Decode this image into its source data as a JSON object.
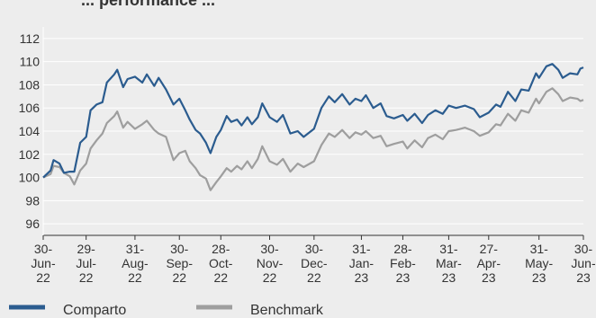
{
  "chart_data": {
    "type": "line",
    "title": "... performance ...",
    "ylim": [
      95,
      113
    ],
    "yticks": [
      96,
      98,
      100,
      102,
      104,
      106,
      108,
      110,
      112
    ],
    "x_ticks": [
      {
        "date": "2022-06-30",
        "lines": [
          "30-",
          "Jun-",
          "22"
        ]
      },
      {
        "date": "2022-07-29",
        "lines": [
          "29-",
          "Jul-",
          "22"
        ]
      },
      {
        "date": "2022-08-31",
        "lines": [
          "31-",
          "Aug-",
          "22"
        ]
      },
      {
        "date": "2022-09-30",
        "lines": [
          "30-",
          "Sep-",
          "22"
        ]
      },
      {
        "date": "2022-10-28",
        "lines": [
          "28-",
          "Oct-",
          "22"
        ]
      },
      {
        "date": "2022-11-30",
        "lines": [
          "30-",
          "Nov-",
          "22"
        ]
      },
      {
        "date": "2022-12-30",
        "lines": [
          "30-",
          "Dec-",
          "22"
        ]
      },
      {
        "date": "2023-01-31",
        "lines": [
          "31-",
          "Jan-",
          "23"
        ]
      },
      {
        "date": "2023-02-28",
        "lines": [
          "28-",
          "Feb-",
          "23"
        ]
      },
      {
        "date": "2023-03-31",
        "lines": [
          "31-",
          "Mar-",
          "23"
        ]
      },
      {
        "date": "2023-04-27",
        "lines": [
          "27-",
          "Apr-",
          "23"
        ]
      },
      {
        "date": "2023-05-31",
        "lines": [
          "31-",
          "May-",
          "23"
        ]
      },
      {
        "date": "2023-06-30",
        "lines": [
          "30-",
          "Jun-",
          "23"
        ]
      }
    ],
    "grid": true,
    "legend_position": "bottom-left",
    "series": [
      {
        "name": "Comparto",
        "color": "#2b5c8f",
        "points": [
          [
            "2022-06-30",
            100.0
          ],
          [
            "2022-07-05",
            100.6
          ],
          [
            "2022-07-07",
            101.5
          ],
          [
            "2022-07-11",
            101.2
          ],
          [
            "2022-07-14",
            100.4
          ],
          [
            "2022-07-18",
            100.5
          ],
          [
            "2022-07-21",
            100.5
          ],
          [
            "2022-07-25",
            103.0
          ],
          [
            "2022-07-29",
            103.5
          ],
          [
            "2022-08-01",
            105.8
          ],
          [
            "2022-08-05",
            106.3
          ],
          [
            "2022-08-09",
            106.5
          ],
          [
            "2022-08-12",
            108.2
          ],
          [
            "2022-08-17",
            108.9
          ],
          [
            "2022-08-19",
            109.3
          ],
          [
            "2022-08-23",
            107.8
          ],
          [
            "2022-08-26",
            108.5
          ],
          [
            "2022-08-31",
            108.7
          ],
          [
            "2022-09-05",
            108.2
          ],
          [
            "2022-09-08",
            108.9
          ],
          [
            "2022-09-13",
            107.9
          ],
          [
            "2022-09-16",
            108.6
          ],
          [
            "2022-09-21",
            107.6
          ],
          [
            "2022-09-26",
            106.3
          ],
          [
            "2022-09-30",
            106.8
          ],
          [
            "2022-10-04",
            105.8
          ],
          [
            "2022-10-07",
            105.0
          ],
          [
            "2022-10-11",
            104.1
          ],
          [
            "2022-10-14",
            103.8
          ],
          [
            "2022-10-18",
            103.0
          ],
          [
            "2022-10-21",
            102.1
          ],
          [
            "2022-10-25",
            103.5
          ],
          [
            "2022-10-28",
            104.1
          ],
          [
            "2022-11-01",
            105.3
          ],
          [
            "2022-11-04",
            104.8
          ],
          [
            "2022-11-08",
            105.0
          ],
          [
            "2022-11-11",
            104.5
          ],
          [
            "2022-11-15",
            105.2
          ],
          [
            "2022-11-18",
            104.6
          ],
          [
            "2022-11-22",
            105.2
          ],
          [
            "2022-11-25",
            106.4
          ],
          [
            "2022-11-30",
            105.2
          ],
          [
            "2022-12-05",
            104.8
          ],
          [
            "2022-12-09",
            105.4
          ],
          [
            "2022-12-14",
            103.8
          ],
          [
            "2022-12-19",
            104.0
          ],
          [
            "2022-12-23",
            103.5
          ],
          [
            "2022-12-30",
            104.2
          ],
          [
            "2023-01-04",
            106.0
          ],
          [
            "2023-01-09",
            107.0
          ],
          [
            "2023-01-13",
            106.5
          ],
          [
            "2023-01-18",
            107.2
          ],
          [
            "2023-01-23",
            106.3
          ],
          [
            "2023-01-27",
            106.8
          ],
          [
            "2023-01-31",
            106.6
          ],
          [
            "2023-02-03",
            107.1
          ],
          [
            "2023-02-08",
            106.0
          ],
          [
            "2023-02-13",
            106.4
          ],
          [
            "2023-02-17",
            105.3
          ],
          [
            "2023-02-22",
            105.1
          ],
          [
            "2023-02-28",
            105.4
          ],
          [
            "2023-03-03",
            104.9
          ],
          [
            "2023-03-08",
            105.5
          ],
          [
            "2023-03-13",
            104.7
          ],
          [
            "2023-03-17",
            105.4
          ],
          [
            "2023-03-22",
            105.8
          ],
          [
            "2023-03-27",
            105.5
          ],
          [
            "2023-03-31",
            106.2
          ],
          [
            "2023-04-05",
            106.0
          ],
          [
            "2023-04-11",
            106.2
          ],
          [
            "2023-04-17",
            105.9
          ],
          [
            "2023-04-21",
            105.2
          ],
          [
            "2023-04-27",
            105.6
          ],
          [
            "2023-05-02",
            106.3
          ],
          [
            "2023-05-05",
            106.1
          ],
          [
            "2023-05-10",
            107.4
          ],
          [
            "2023-05-15",
            106.6
          ],
          [
            "2023-05-19",
            107.6
          ],
          [
            "2023-05-24",
            107.5
          ],
          [
            "2023-05-29",
            109.0
          ],
          [
            "2023-05-31",
            108.6
          ],
          [
            "2023-06-05",
            109.6
          ],
          [
            "2023-06-09",
            109.8
          ],
          [
            "2023-06-13",
            109.3
          ],
          [
            "2023-06-16",
            108.6
          ],
          [
            "2023-06-21",
            109.0
          ],
          [
            "2023-06-26",
            108.9
          ],
          [
            "2023-06-28",
            109.4
          ],
          [
            "2023-06-30",
            109.5
          ]
        ]
      },
      {
        "name": "Benchmark",
        "color": "#9e9e9e",
        "points": [
          [
            "2022-06-30",
            100.0
          ],
          [
            "2022-07-05",
            100.3
          ],
          [
            "2022-07-07",
            101.0
          ],
          [
            "2022-07-11",
            100.9
          ],
          [
            "2022-07-14",
            100.4
          ],
          [
            "2022-07-18",
            100.1
          ],
          [
            "2022-07-21",
            99.4
          ],
          [
            "2022-07-25",
            100.6
          ],
          [
            "2022-07-29",
            101.2
          ],
          [
            "2022-08-01",
            102.5
          ],
          [
            "2022-08-05",
            103.2
          ],
          [
            "2022-08-09",
            103.8
          ],
          [
            "2022-08-12",
            104.7
          ],
          [
            "2022-08-17",
            105.3
          ],
          [
            "2022-08-19",
            105.7
          ],
          [
            "2022-08-23",
            104.3
          ],
          [
            "2022-08-26",
            104.8
          ],
          [
            "2022-08-31",
            104.2
          ],
          [
            "2022-09-05",
            104.6
          ],
          [
            "2022-09-08",
            104.9
          ],
          [
            "2022-09-13",
            104.1
          ],
          [
            "2022-09-16",
            103.8
          ],
          [
            "2022-09-21",
            103.5
          ],
          [
            "2022-09-26",
            101.5
          ],
          [
            "2022-09-30",
            102.1
          ],
          [
            "2022-10-04",
            102.3
          ],
          [
            "2022-10-07",
            101.4
          ],
          [
            "2022-10-11",
            100.8
          ],
          [
            "2022-10-14",
            100.2
          ],
          [
            "2022-10-18",
            99.9
          ],
          [
            "2022-10-21",
            98.9
          ],
          [
            "2022-10-25",
            99.6
          ],
          [
            "2022-10-28",
            100.1
          ],
          [
            "2022-11-01",
            100.8
          ],
          [
            "2022-11-04",
            100.5
          ],
          [
            "2022-11-08",
            101.0
          ],
          [
            "2022-11-11",
            100.7
          ],
          [
            "2022-11-15",
            101.4
          ],
          [
            "2022-11-18",
            100.8
          ],
          [
            "2022-11-22",
            101.6
          ],
          [
            "2022-11-25",
            102.7
          ],
          [
            "2022-11-30",
            101.4
          ],
          [
            "2022-12-05",
            101.1
          ],
          [
            "2022-12-09",
            101.6
          ],
          [
            "2022-12-14",
            100.5
          ],
          [
            "2022-12-19",
            101.2
          ],
          [
            "2022-12-23",
            100.9
          ],
          [
            "2022-12-30",
            101.4
          ],
          [
            "2023-01-04",
            102.8
          ],
          [
            "2023-01-09",
            103.8
          ],
          [
            "2023-01-13",
            103.5
          ],
          [
            "2023-01-18",
            104.1
          ],
          [
            "2023-01-23",
            103.4
          ],
          [
            "2023-01-27",
            103.9
          ],
          [
            "2023-01-31",
            103.7
          ],
          [
            "2023-02-03",
            104.0
          ],
          [
            "2023-02-08",
            103.4
          ],
          [
            "2023-02-13",
            103.6
          ],
          [
            "2023-02-17",
            102.7
          ],
          [
            "2023-02-22",
            102.9
          ],
          [
            "2023-02-28",
            103.1
          ],
          [
            "2023-03-03",
            102.5
          ],
          [
            "2023-03-08",
            103.2
          ],
          [
            "2023-03-13",
            102.6
          ],
          [
            "2023-03-17",
            103.4
          ],
          [
            "2023-03-22",
            103.7
          ],
          [
            "2023-03-27",
            103.3
          ],
          [
            "2023-03-31",
            104.0
          ],
          [
            "2023-04-05",
            104.1
          ],
          [
            "2023-04-11",
            104.3
          ],
          [
            "2023-04-17",
            104.0
          ],
          [
            "2023-04-21",
            103.6
          ],
          [
            "2023-04-27",
            103.9
          ],
          [
            "2023-05-02",
            104.6
          ],
          [
            "2023-05-05",
            104.5
          ],
          [
            "2023-05-10",
            105.5
          ],
          [
            "2023-05-15",
            104.9
          ],
          [
            "2023-05-19",
            105.8
          ],
          [
            "2023-05-24",
            105.6
          ],
          [
            "2023-05-29",
            106.8
          ],
          [
            "2023-05-31",
            106.4
          ],
          [
            "2023-06-05",
            107.4
          ],
          [
            "2023-06-09",
            107.7
          ],
          [
            "2023-06-13",
            107.2
          ],
          [
            "2023-06-16",
            106.6
          ],
          [
            "2023-06-21",
            106.9
          ],
          [
            "2023-06-26",
            106.8
          ],
          [
            "2023-06-28",
            106.6
          ],
          [
            "2023-06-30",
            106.7
          ]
        ]
      }
    ]
  }
}
